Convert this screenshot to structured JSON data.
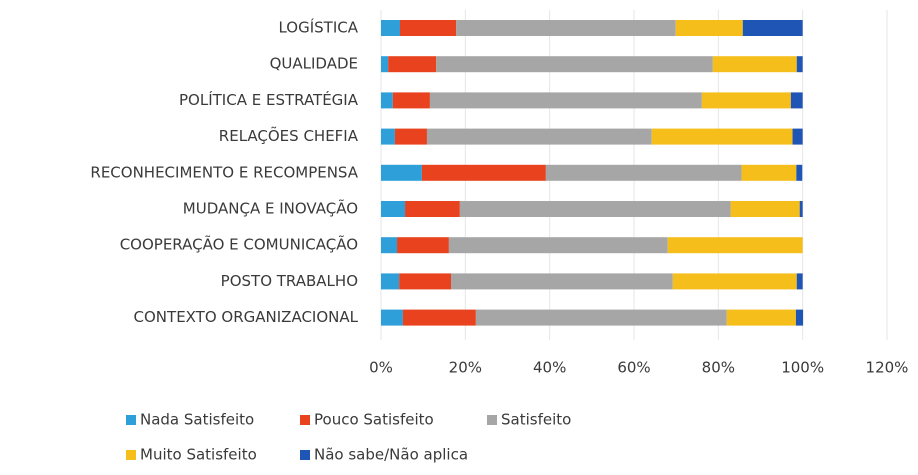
{
  "chart_data": {
    "type": "bar",
    "orientation": "horizontal",
    "stacked": true,
    "categories": [
      "LOGÍSTICA",
      "QUALIDADE",
      "POLÍTICA E ESTRATÉGIA",
      "RELAÇÕES CHEFIA",
      "RECONHECIMENTO E RECOMPENSA",
      "MUDANÇA E INOVAÇÃO",
      "COOPERAÇÃO E COMUNICAÇÃO",
      "POSTO TRABALHO",
      "CONTEXTO ORGANIZACIONAL"
    ],
    "series": [
      {
        "name": "Nada Satisfeito",
        "color": "#2e9fd8",
        "values": [
          4.5,
          1.7,
          2.8,
          3.3,
          9.7,
          5.7,
          3.8,
          4.3,
          5.2
        ]
      },
      {
        "name": "Pouco Satisfeito",
        "color": "#e8431e",
        "values": [
          13.3,
          11.4,
          8.8,
          7.6,
          29.4,
          13,
          12.3,
          12.3,
          17.3
        ]
      },
      {
        "name": "Satisfeito",
        "color": "#a6a6a6",
        "values": [
          52.1,
          65.6,
          64.5,
          53.3,
          46.4,
          64.2,
          51.9,
          52.6,
          59.5
        ]
      },
      {
        "name": "Muito Satisfeito",
        "color": "#f5be1a",
        "values": [
          15.9,
          19.9,
          21.1,
          33.4,
          13,
          16.4,
          32,
          29.4,
          16.4
        ]
      },
      {
        "name": "Não sabe/Não aplica",
        "color": "#1f55b5",
        "values": [
          14.2,
          1.4,
          2.8,
          2.4,
          1.4,
          0.7,
          0,
          1.4,
          1.7
        ]
      }
    ],
    "xlim": [
      0,
      120
    ],
    "xticks": [
      {
        "value": 0,
        "label": "0%"
      },
      {
        "value": 20,
        "label": "20%"
      },
      {
        "value": 40,
        "label": "40%"
      },
      {
        "value": 60,
        "label": "60%"
      },
      {
        "value": 80,
        "label": "80%"
      },
      {
        "value": 100,
        "label": "100%"
      },
      {
        "value": 120,
        "label": "120%"
      }
    ],
    "grid": true
  }
}
